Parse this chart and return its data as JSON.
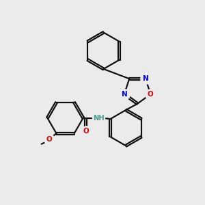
{
  "bg_color": "#ebebeb",
  "bond_color": "#111111",
  "N_color": "#0000ee",
  "O_color": "#dd0000",
  "H_color": "#4a9a8a",
  "figsize": [
    3.0,
    3.0
  ],
  "dpi": 100,
  "xlim": [
    0,
    10
  ],
  "ylim": [
    0,
    10
  ]
}
